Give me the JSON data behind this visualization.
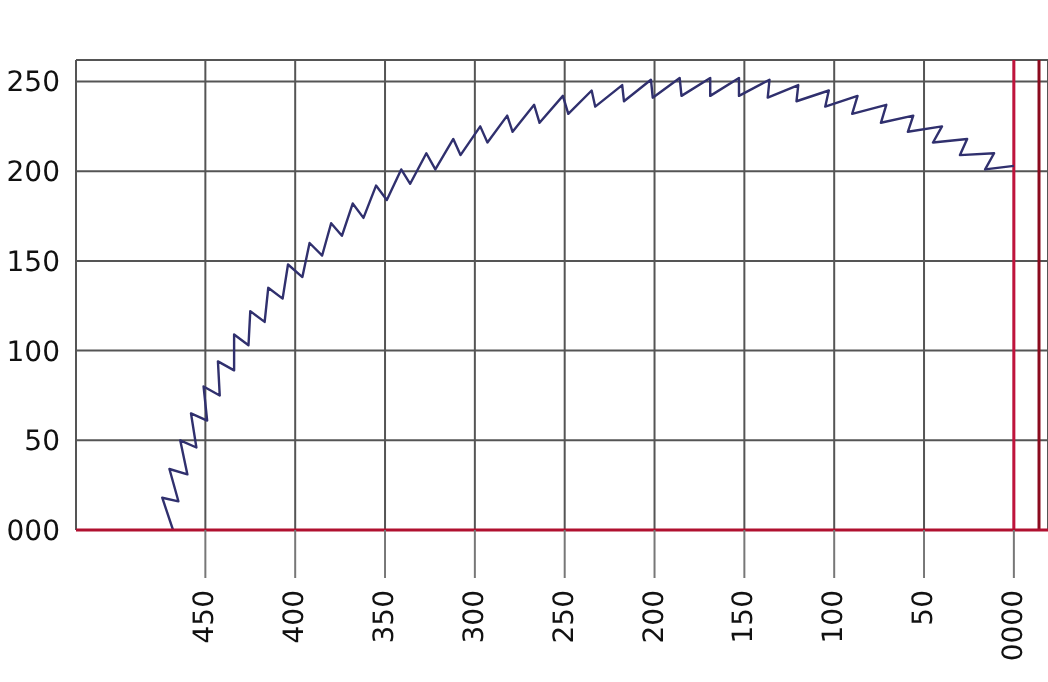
{
  "chart_data": {
    "type": "line",
    "series": [
      {
        "color": "#30306e",
        "x": [
          468,
          474,
          465,
          470,
          460,
          464,
          455,
          458,
          449,
          451,
          442,
          443,
          434,
          434,
          426,
          425,
          417,
          415,
          407,
          404,
          396,
          392,
          385,
          380,
          374,
          368,
          362,
          355,
          349,
          341,
          336,
          327,
          322,
          312,
          308,
          297,
          293,
          282,
          279,
          267,
          264,
          251,
          248,
          235,
          233,
          218,
          217,
          202,
          201,
          186,
          185,
          169,
          169,
          153,
          153,
          136,
          137,
          120,
          121,
          103,
          105,
          87,
          90,
          71,
          74,
          56,
          59,
          40,
          45,
          26,
          30,
          11,
          16,
          0
        ],
        "values": [
          0,
          18,
          16,
          34,
          31,
          50,
          46,
          65,
          61,
          80,
          75,
          94,
          89,
          109,
          103,
          122,
          116,
          135,
          129,
          148,
          141,
          160,
          153,
          171,
          164,
          182,
          174,
          192,
          184,
          201,
          193,
          210,
          201,
          218,
          209,
          225,
          216,
          231,
          222,
          237,
          227,
          242,
          232,
          245,
          236,
          248,
          239,
          251,
          241,
          252,
          242,
          252,
          242,
          252,
          242,
          251,
          241,
          248,
          239,
          245,
          236,
          242,
          232,
          237,
          227,
          231,
          222,
          225,
          216,
          218,
          209,
          210,
          201,
          203
        ]
      }
    ],
    "xlim": [
      522,
      -19
    ],
    "ylim": [
      0,
      262
    ],
    "xticks": [
      450,
      400,
      350,
      300,
      250,
      200,
      150,
      100,
      50,
      {
        "value": 0,
        "label": "0000"
      }
    ],
    "yticks": [
      {
        "value": 0,
        "label": "000"
      },
      50,
      100,
      150,
      200,
      250
    ],
    "grid": true,
    "marker": "none",
    "line_style": "solid",
    "ref_lines": [
      {
        "axis": "x",
        "value": 0,
        "color": "#c0143c"
      },
      {
        "axis": "x",
        "value": -14,
        "color": "#8b0a1e"
      }
    ]
  }
}
